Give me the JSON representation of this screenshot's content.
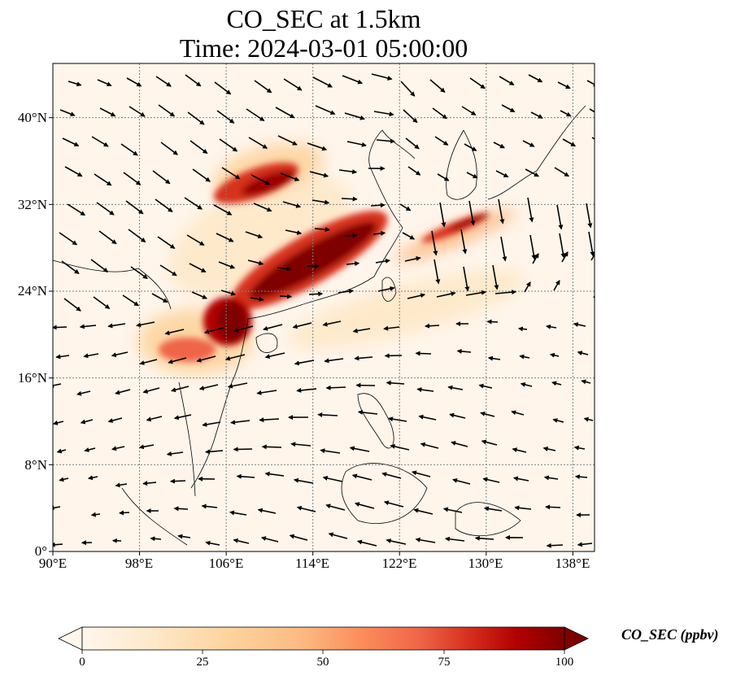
{
  "title": {
    "line1": "CO_SEC at 1.5km",
    "line2": "Time: 2024-03-01 05:00:00"
  },
  "map": {
    "lon_range": [
      90,
      140
    ],
    "lat_range": [
      0,
      45
    ],
    "lat_ticks": [
      "40°N",
      "32°N",
      "24°N",
      "16°N",
      "8°N",
      "0°"
    ],
    "lon_ticks": [
      "90°E",
      "98°E",
      "106°E",
      "114°E",
      "122°E",
      "130°E",
      "138°E"
    ],
    "gridlines": true
  },
  "colorbar": {
    "label": "CO_SEC (ppbv)",
    "ticks": [
      "0",
      "25",
      "50",
      "75",
      "100"
    ],
    "range": [
      0,
      100
    ],
    "colormap": "OrRd",
    "extend": "both"
  },
  "colors": {
    "background_low": "#fff5eb",
    "mid": "#fc8d59",
    "high": "#7f0000",
    "wind_vectors": "#000000",
    "coastline": "#000000",
    "gridline": "#808080"
  }
}
